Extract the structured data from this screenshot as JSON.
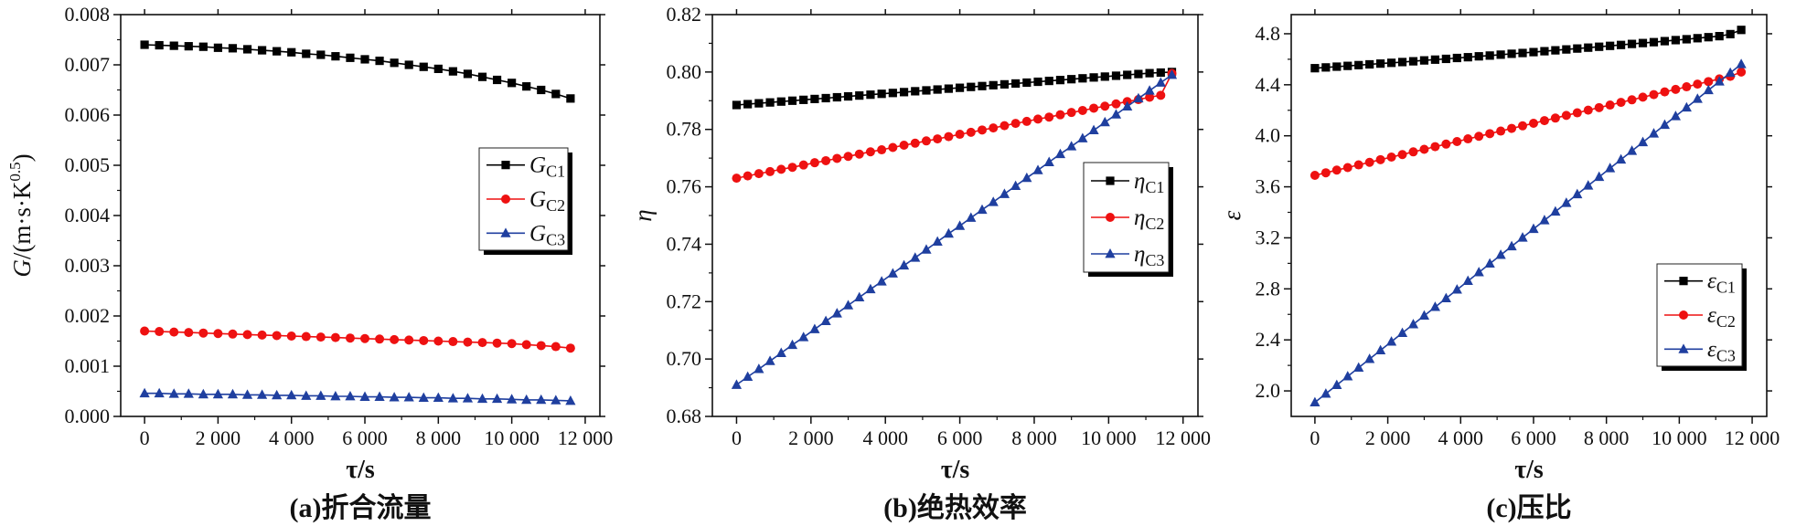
{
  "colors": {
    "series_c1": "#000000",
    "series_c2": "#ee1111",
    "series_c3": "#1f3f9f"
  },
  "chart_data": [
    {
      "type": "line",
      "caption": "(a)折合流量",
      "xlabel": "τ/s",
      "ylabel": {
        "main": "G",
        "rest": "/(m·s·K",
        "sup": "0.5",
        "close": ")"
      },
      "xlim": [
        -650,
        12400
      ],
      "ylim": [
        0,
        0.008
      ],
      "xticks": [
        0,
        2000,
        4000,
        6000,
        8000,
        10000,
        12000
      ],
      "xtick_labels": [
        "0",
        "2 000",
        "4 000",
        "6 000",
        "8 000",
        "10 000",
        "12 000"
      ],
      "yticks": [
        0,
        0.001,
        0.002,
        0.003,
        0.004,
        0.005,
        0.006,
        0.007,
        0.008
      ],
      "ytick_labels": [
        "0.000",
        "0.001",
        "0.002",
        "0.003",
        "0.004",
        "0.005",
        "0.006",
        "0.007",
        "0.008"
      ],
      "x": {
        "start": 0,
        "step": 400,
        "count": 30
      },
      "legend": {
        "position": "center-right"
      },
      "series": [
        {
          "name": "GC1",
          "symbol": "G",
          "subscript": "C1",
          "marker": "square",
          "color": "#000000",
          "values": [
            0.0074,
            0.00739,
            0.00738,
            0.00737,
            0.00736,
            0.00734,
            0.00733,
            0.00731,
            0.00729,
            0.00727,
            0.00725,
            0.00722,
            0.0072,
            0.00717,
            0.00714,
            0.00711,
            0.00708,
            0.00704,
            0.007,
            0.00696,
            0.00692,
            0.00687,
            0.00682,
            0.00676,
            0.0067,
            0.00664,
            0.00657,
            0.0065,
            0.00642,
            0.00633
          ]
        },
        {
          "name": "GC2",
          "symbol": "G",
          "subscript": "C2",
          "marker": "circle",
          "color": "#ee1111",
          "values": [
            0.0017,
            0.00169,
            0.00168,
            0.00167,
            0.00166,
            0.00165,
            0.00164,
            0.00163,
            0.00162,
            0.00161,
            0.0016,
            0.00159,
            0.00158,
            0.00157,
            0.00156,
            0.00155,
            0.00154,
            0.00153,
            0.00152,
            0.00151,
            0.0015,
            0.00149,
            0.00148,
            0.00147,
            0.00146,
            0.00145,
            0.00143,
            0.00141,
            0.00139,
            0.00136
          ]
        },
        {
          "name": "GC3",
          "symbol": "G",
          "subscript": "C3",
          "marker": "triangle",
          "color": "#1f3f9f",
          "values": [
            0.00046,
            0.00046,
            0.00045,
            0.00045,
            0.00044,
            0.00044,
            0.00044,
            0.00043,
            0.00043,
            0.00042,
            0.00042,
            0.00041,
            0.00041,
            0.0004,
            0.0004,
            0.00039,
            0.00039,
            0.00038,
            0.00038,
            0.00037,
            0.00037,
            0.00036,
            0.00036,
            0.00035,
            0.00035,
            0.00034,
            0.00033,
            0.00033,
            0.00032,
            0.00031
          ]
        }
      ]
    },
    {
      "type": "line",
      "caption": "(b)绝热效率",
      "xlabel": "τ/s",
      "ylabel": {
        "main": "η",
        "rest": "",
        "sup": "",
        "close": ""
      },
      "xlim": [
        -650,
        12400
      ],
      "ylim": [
        0.68,
        0.82
      ],
      "xticks": [
        0,
        2000,
        4000,
        6000,
        8000,
        10000,
        12000
      ],
      "xtick_labels": [
        "0",
        "2 000",
        "4 000",
        "6 000",
        "8 000",
        "10 000",
        "12 000"
      ],
      "yticks": [
        0.68,
        0.7,
        0.72,
        0.74,
        0.76,
        0.78,
        0.8,
        0.82
      ],
      "ytick_labels": [
        "0.68",
        "0.70",
        "0.72",
        "0.74",
        "0.76",
        "0.78",
        "0.80",
        "0.82"
      ],
      "x": {
        "start": 0,
        "step": 300,
        "count": 40
      },
      "legend": {
        "position": "center-right"
      },
      "series": [
        {
          "name": "ηC1",
          "symbol": "η",
          "subscript": "C1",
          "marker": "square",
          "color": "#000000",
          "values": [
            0.7885,
            0.7888,
            0.7891,
            0.7894,
            0.7897,
            0.79,
            0.7903,
            0.7906,
            0.7909,
            0.7912,
            0.7915,
            0.7918,
            0.7921,
            0.7924,
            0.7927,
            0.793,
            0.7933,
            0.7936,
            0.7939,
            0.7942,
            0.7945,
            0.7948,
            0.7951,
            0.7954,
            0.7957,
            0.796,
            0.7963,
            0.7966,
            0.7969,
            0.7972,
            0.7975,
            0.7978,
            0.7981,
            0.7984,
            0.7987,
            0.799,
            0.7993,
            0.7996,
            0.7998,
            0.8
          ]
        },
        {
          "name": "ηC2",
          "symbol": "η",
          "subscript": "C2",
          "marker": "circle",
          "color": "#ee1111",
          "values": [
            0.763,
            0.7638,
            0.7646,
            0.7653,
            0.7661,
            0.7668,
            0.7676,
            0.7684,
            0.7691,
            0.7699,
            0.7706,
            0.7714,
            0.7722,
            0.7729,
            0.7737,
            0.7745,
            0.7752,
            0.776,
            0.7767,
            0.7775,
            0.7783,
            0.779,
            0.7798,
            0.7805,
            0.7813,
            0.7821,
            0.7828,
            0.7836,
            0.7843,
            0.7851,
            0.7859,
            0.7866,
            0.7874,
            0.7881,
            0.7889,
            0.7897,
            0.7904,
            0.7912,
            0.7919,
            0.7995
          ]
        },
        {
          "name": "ηC3",
          "symbol": "η",
          "subscript": "C3",
          "marker": "triangle",
          "color": "#1f3f9f",
          "values": [
            0.691,
            0.6938,
            0.6965,
            0.6993,
            0.7021,
            0.7049,
            0.7076,
            0.7104,
            0.7132,
            0.7159,
            0.7187,
            0.7215,
            0.7243,
            0.727,
            0.7298,
            0.7326,
            0.7353,
            0.7381,
            0.7409,
            0.7437,
            0.7464,
            0.7492,
            0.752,
            0.7547,
            0.7575,
            0.7603,
            0.7631,
            0.7658,
            0.7686,
            0.7714,
            0.7741,
            0.7769,
            0.7797,
            0.7825,
            0.7852,
            0.788,
            0.7908,
            0.7935,
            0.7963,
            0.799
          ]
        }
      ]
    },
    {
      "type": "line",
      "caption": "(c)压比",
      "xlabel": "τ/s",
      "ylabel": {
        "main": "ε",
        "rest": "",
        "sup": "",
        "close": ""
      },
      "xlim": [
        -650,
        12400
      ],
      "ylim": [
        1.8,
        4.95
      ],
      "xticks": [
        0,
        2000,
        4000,
        6000,
        8000,
        10000,
        12000
      ],
      "xtick_labels": [
        "0",
        "2 000",
        "4 000",
        "6 000",
        "8 000",
        "10 000",
        "12 000"
      ],
      "yticks": [
        2.0,
        2.4,
        2.8,
        3.2,
        3.6,
        4.0,
        4.4,
        4.8
      ],
      "ytick_labels": [
        "2.0",
        "2.4",
        "2.8",
        "3.2",
        "3.6",
        "4.0",
        "4.4",
        "4.8"
      ],
      "x": {
        "start": 0,
        "step": 300,
        "count": 40
      },
      "legend": {
        "position": "lower-right"
      },
      "series": [
        {
          "name": "εC1",
          "symbol": "ε",
          "subscript": "C1",
          "marker": "square",
          "color": "#000000",
          "values": [
            4.53,
            4.536,
            4.542,
            4.548,
            4.554,
            4.56,
            4.566,
            4.572,
            4.578,
            4.584,
            4.591,
            4.597,
            4.603,
            4.61,
            4.616,
            4.623,
            4.629,
            4.636,
            4.643,
            4.649,
            4.656,
            4.663,
            4.67,
            4.677,
            4.684,
            4.691,
            4.698,
            4.705,
            4.712,
            4.72,
            4.727,
            4.734,
            4.742,
            4.75,
            4.757,
            4.765,
            4.773,
            4.781,
            4.797,
            4.83
          ]
        },
        {
          "name": "εC2",
          "symbol": "ε",
          "subscript": "C2",
          "marker": "circle",
          "color": "#ee1111",
          "values": [
            3.69,
            3.71,
            3.731,
            3.751,
            3.772,
            3.792,
            3.813,
            3.833,
            3.853,
            3.874,
            3.894,
            3.915,
            3.935,
            3.955,
            3.976,
            3.996,
            4.017,
            4.037,
            4.058,
            4.078,
            4.098,
            4.119,
            4.139,
            4.16,
            4.18,
            4.201,
            4.221,
            4.241,
            4.262,
            4.282,
            4.303,
            4.323,
            4.344,
            4.364,
            4.384,
            4.405,
            4.425,
            4.446,
            4.466,
            4.5
          ]
        },
        {
          "name": "εC3",
          "symbol": "ε",
          "subscript": "C3",
          "marker": "triangle",
          "color": "#1f3f9f",
          "values": [
            1.91,
            1.978,
            2.046,
            2.114,
            2.182,
            2.25,
            2.318,
            2.386,
            2.454,
            2.522,
            2.59,
            2.658,
            2.726,
            2.794,
            2.862,
            2.93,
            2.998,
            3.066,
            3.134,
            3.202,
            3.27,
            3.338,
            3.406,
            3.474,
            3.542,
            3.61,
            3.678,
            3.746,
            3.814,
            3.882,
            3.95,
            4.018,
            4.086,
            4.154,
            4.222,
            4.29,
            4.358,
            4.426,
            4.494,
            4.562
          ]
        }
      ]
    }
  ]
}
